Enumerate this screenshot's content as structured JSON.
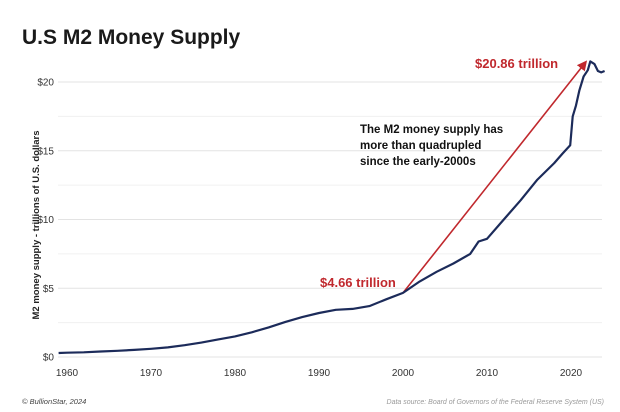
{
  "chart_data": {
    "type": "line",
    "title": "U.S M2 Money Supply",
    "ylabel": "M2 money supply - trillions of U.S. dollars",
    "xlabel": "",
    "xlim": [
      1959,
      2024
    ],
    "ylim": [
      0,
      22
    ],
    "x_ticks": [
      1960,
      1970,
      1980,
      1990,
      2000,
      2010,
      2020
    ],
    "y_ticks": [
      0,
      5,
      10,
      15,
      20
    ],
    "y_tick_labels": [
      "$0",
      "$5",
      "$10",
      "$15",
      "$20"
    ],
    "grid": "horizontal",
    "series": [
      {
        "color": "#1c2b5a",
        "points": [
          [
            1959,
            0.29
          ],
          [
            1960,
            0.31
          ],
          [
            1962,
            0.34
          ],
          [
            1964,
            0.4
          ],
          [
            1966,
            0.45
          ],
          [
            1968,
            0.52
          ],
          [
            1970,
            0.6
          ],
          [
            1972,
            0.7
          ],
          [
            1974,
            0.86
          ],
          [
            1976,
            1.05
          ],
          [
            1978,
            1.28
          ],
          [
            1980,
            1.5
          ],
          [
            1982,
            1.8
          ],
          [
            1984,
            2.15
          ],
          [
            1986,
            2.55
          ],
          [
            1988,
            2.9
          ],
          [
            1990,
            3.2
          ],
          [
            1992,
            3.43
          ],
          [
            1994,
            3.5
          ],
          [
            1996,
            3.7
          ],
          [
            1998,
            4.2
          ],
          [
            2000,
            4.66
          ],
          [
            2002,
            5.5
          ],
          [
            2004,
            6.2
          ],
          [
            2006,
            6.8
          ],
          [
            2008,
            7.5
          ],
          [
            2009,
            8.4
          ],
          [
            2010,
            8.6
          ],
          [
            2012,
            10.0
          ],
          [
            2014,
            11.4
          ],
          [
            2016,
            12.9
          ],
          [
            2018,
            14.1
          ],
          [
            2019,
            14.8
          ],
          [
            2019.9,
            15.4
          ],
          [
            2020.2,
            17.5
          ],
          [
            2020.6,
            18.3
          ],
          [
            2021,
            19.4
          ],
          [
            2021.5,
            20.4
          ],
          [
            2022,
            20.86
          ],
          [
            2022.3,
            21.5
          ],
          [
            2022.8,
            21.3
          ],
          [
            2023.2,
            20.8
          ],
          [
            2023.6,
            20.7
          ],
          [
            2024,
            20.8
          ]
        ]
      }
    ],
    "annotations": {
      "start_label": "$4.66 trillion",
      "end_label": "$20.86 trillion",
      "note_lines": [
        "The M2 money supply has",
        "more than quadrupled",
        "since the early-2000s"
      ],
      "arrow_from": [
        2000,
        4.66
      ],
      "arrow_to": [
        2022,
        21.6
      ],
      "arrow_color": "#c0282d",
      "label_color": "#c0282d"
    }
  },
  "footer": {
    "left": "© BullionStar, 2024",
    "right": "Data source: Board of Governors of the Federal Reserve System (US)"
  }
}
